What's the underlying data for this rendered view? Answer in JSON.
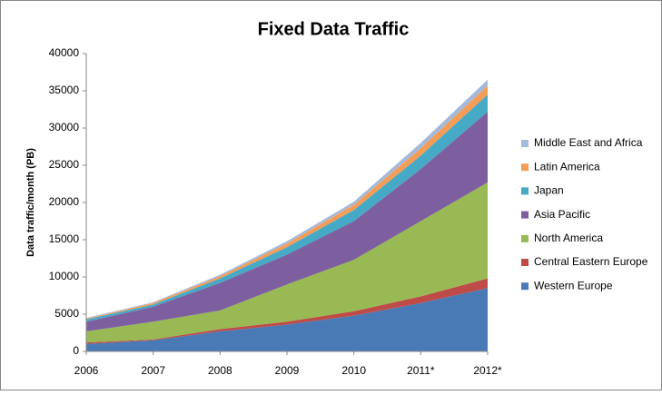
{
  "chart_data": {
    "type": "stacked_area",
    "title": "Fixed Data Traffic",
    "y_label": "Data traffic/month (PB)",
    "categories": [
      "2006",
      "2007",
      "2008",
      "2009",
      "2010",
      "2011*",
      "2012*"
    ],
    "series": [
      {
        "name": "Western Europe",
        "color": "#4a7ab5",
        "values": [
          1000,
          1500,
          2700,
          3600,
          4800,
          6500,
          8500
        ]
      },
      {
        "name": "Central Eastern Europe",
        "color": "#be4b48",
        "values": [
          200,
          100,
          300,
          400,
          600,
          900,
          1300
        ]
      },
      {
        "name": "North America",
        "color": "#98b954",
        "values": [
          1500,
          2400,
          2500,
          5000,
          6900,
          10100,
          12900
        ]
      },
      {
        "name": "Asia Pacific",
        "color": "#7d5fa0",
        "values": [
          1300,
          2000,
          3700,
          4000,
          5200,
          7000,
          9500
        ]
      },
      {
        "name": "Japan",
        "color": "#46a9c5",
        "values": [
          300,
          300,
          600,
          1000,
          1500,
          1800,
          2300
        ]
      },
      {
        "name": "Latin America",
        "color": "#f59d56",
        "values": [
          100,
          200,
          300,
          500,
          700,
          1000,
          1200
        ]
      },
      {
        "name": "Middle East and Africa",
        "color": "#a5b9da",
        "values": [
          100,
          100,
          200,
          300,
          400,
          700,
          800
        ]
      }
    ],
    "ylim": [
      0,
      40000
    ],
    "yticks": [
      0,
      5000,
      10000,
      15000,
      20000,
      25000,
      30000,
      35000,
      40000
    ],
    "grid": false,
    "legend": "right"
  }
}
